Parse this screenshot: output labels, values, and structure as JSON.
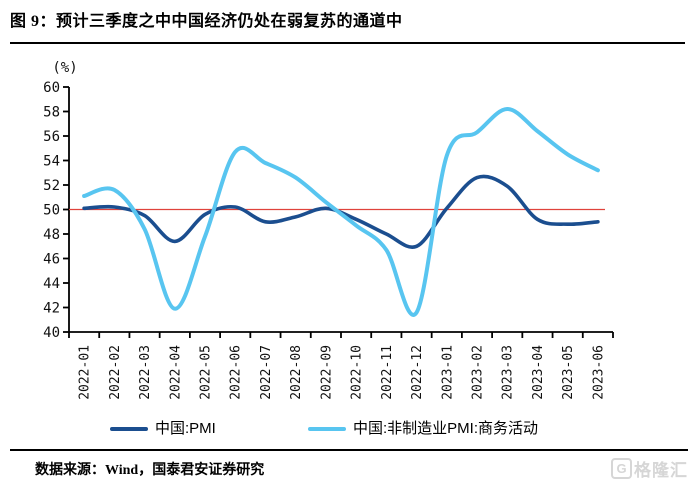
{
  "header": {
    "title": "图 9：预计三季度之中中国经济仍处在弱复苏的通道中"
  },
  "chart_data": {
    "type": "line",
    "unit_label": "(%)",
    "x": [
      "2022-01",
      "2022-02",
      "2022-03",
      "2022-04",
      "2022-05",
      "2022-06",
      "2022-07",
      "2022-08",
      "2022-09",
      "2022-10",
      "2022-11",
      "2022-12",
      "2023-01",
      "2023-02",
      "2023-03",
      "2023-04",
      "2023-05",
      "2023-06"
    ],
    "series": [
      {
        "name": "中国:PMI",
        "color": "#1b4e8f",
        "values": [
          50.1,
          50.2,
          49.5,
          47.4,
          49.6,
          50.2,
          49.0,
          49.4,
          50.1,
          49.2,
          48.0,
          47.0,
          50.1,
          52.6,
          51.9,
          49.2,
          48.8,
          49.0
        ]
      },
      {
        "name": "中国:非制造业PMI:商务活动",
        "color": "#58c5f0",
        "values": [
          51.1,
          51.6,
          48.4,
          41.9,
          47.8,
          54.7,
          53.8,
          52.6,
          50.6,
          48.7,
          46.7,
          41.6,
          54.4,
          56.3,
          58.2,
          56.4,
          54.5,
          53.2
        ]
      }
    ],
    "ylim": [
      40,
      60
    ],
    "ytick_step": 2,
    "reference_line": {
      "value": 50,
      "color": "#e0433c"
    },
    "axis_color": "#000000",
    "grid": false,
    "legend_position": "bottom",
    "line_smoothing": "spline"
  },
  "footer": {
    "source": "数据来源：Wind，国泰君安证券研究"
  },
  "watermark": {
    "logo_letter": "G",
    "text": "格隆汇"
  }
}
